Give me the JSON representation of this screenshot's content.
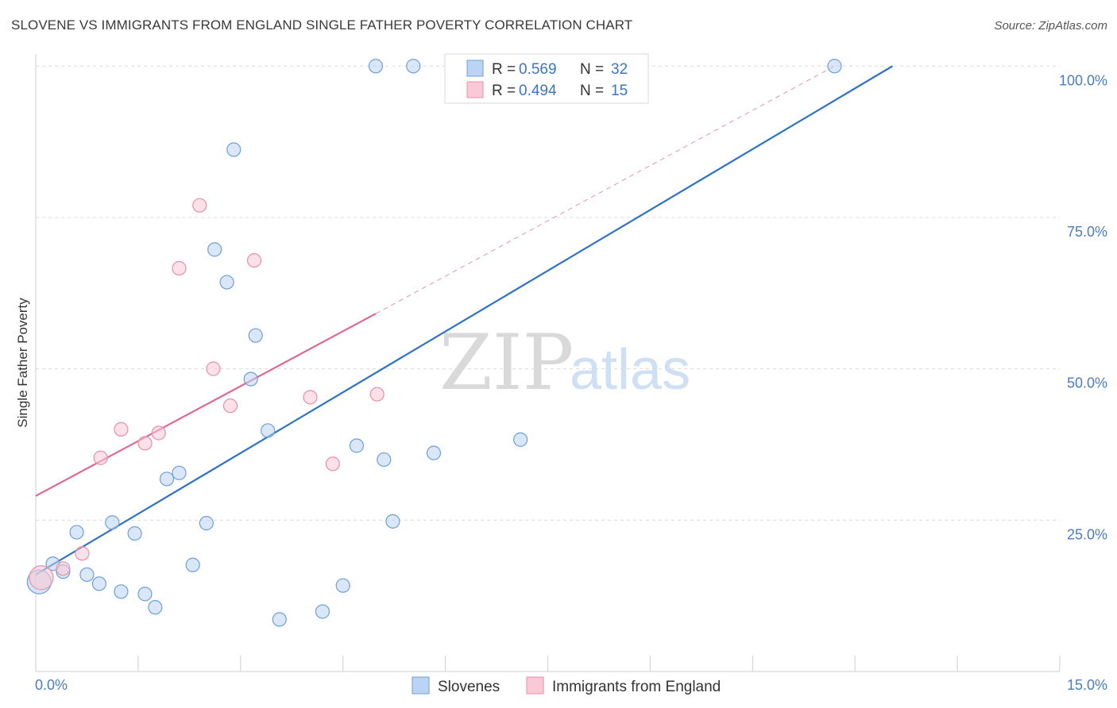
{
  "title": "SLOVENE VS IMMIGRANTS FROM ENGLAND SINGLE FATHER POVERTY CORRELATION CHART",
  "source": "Source: ZipAtlas.com",
  "watermark": {
    "zip": "ZIP",
    "atlas": "atlas"
  },
  "colors": {
    "slovenes_fill": "#bcd4f3",
    "slovenes_stroke": "#6f9fd8",
    "slovenes_line": "#2e72c8",
    "england_fill": "#f9c9d6",
    "england_stroke": "#e98fa8",
    "england_line": "#e06890",
    "grid": "#dcdcdc",
    "tick_label": "#4a7cc4"
  },
  "legend": {
    "rows": [
      {
        "r_label": "R =",
        "r_value": "0.569",
        "n_label": "N =",
        "n_value": "32"
      },
      {
        "r_label": "R =",
        "r_value": "0.494",
        "n_label": "N =",
        "n_value": "15"
      }
    ]
  },
  "chart_data": {
    "type": "scatter",
    "title": "SLOVENE VS IMMIGRANTS FROM ENGLAND SINGLE FATHER POVERTY CORRELATION CHART",
    "xlabel": "",
    "ylabel": "Single Father Poverty",
    "xlim": [
      0,
      15
    ],
    "ylim": [
      0,
      102
    ],
    "x_tick_labels": [
      "0.0%",
      "15.0%"
    ],
    "y_ticks": [
      25,
      50,
      75,
      100
    ],
    "y_tick_labels": [
      "25.0%",
      "50.0%",
      "75.0%",
      "100.0%"
    ],
    "grid": true,
    "legend_position": "top-center",
    "series": [
      {
        "name": "Slovenes",
        "r": 0.569,
        "n": 32,
        "trend": {
          "x0": 0,
          "y0": 16.0,
          "x1": 12.55,
          "y1": 100.0
        },
        "points": [
          {
            "x": 0.05,
            "y": 14.8,
            "large": true
          },
          {
            "x": 0.25,
            "y": 17.8
          },
          {
            "x": 0.4,
            "y": 16.5
          },
          {
            "x": 0.6,
            "y": 23.0
          },
          {
            "x": 0.75,
            "y": 16.0
          },
          {
            "x": 0.93,
            "y": 14.5
          },
          {
            "x": 1.12,
            "y": 24.6
          },
          {
            "x": 1.25,
            "y": 13.2
          },
          {
            "x": 1.45,
            "y": 22.8
          },
          {
            "x": 1.6,
            "y": 12.8
          },
          {
            "x": 1.75,
            "y": 10.6
          },
          {
            "x": 1.92,
            "y": 31.8
          },
          {
            "x": 2.1,
            "y": 32.8
          },
          {
            "x": 2.3,
            "y": 17.6
          },
          {
            "x": 2.5,
            "y": 24.5
          },
          {
            "x": 2.62,
            "y": 69.7
          },
          {
            "x": 2.8,
            "y": 64.3
          },
          {
            "x": 2.9,
            "y": 86.2
          },
          {
            "x": 3.15,
            "y": 48.3
          },
          {
            "x": 3.22,
            "y": 55.5
          },
          {
            "x": 3.4,
            "y": 39.8
          },
          {
            "x": 3.57,
            "y": 8.6
          },
          {
            "x": 4.2,
            "y": 9.9
          },
          {
            "x": 4.5,
            "y": 14.2
          },
          {
            "x": 4.7,
            "y": 37.3
          },
          {
            "x": 4.98,
            "y": 100.0
          },
          {
            "x": 5.1,
            "y": 35.0
          },
          {
            "x": 5.23,
            "y": 24.8
          },
          {
            "x": 5.53,
            "y": 100.0
          },
          {
            "x": 5.83,
            "y": 36.1
          },
          {
            "x": 7.1,
            "y": 38.3
          },
          {
            "x": 11.7,
            "y": 100.0
          }
        ]
      },
      {
        "name": "Immigrants from England",
        "r": 0.494,
        "n": 15,
        "trend": {
          "x0": 0,
          "y0": 29.0,
          "x1": 4.98,
          "y1": 59.1
        },
        "trend_extension": {
          "x0": 4.98,
          "y0": 59.1,
          "x1": 11.7,
          "y1": 100.0
        },
        "points": [
          {
            "x": 0.08,
            "y": 15.5,
            "large": true
          },
          {
            "x": 0.4,
            "y": 17.0
          },
          {
            "x": 0.68,
            "y": 19.5
          },
          {
            "x": 0.95,
            "y": 35.3
          },
          {
            "x": 1.25,
            "y": 40.0
          },
          {
            "x": 1.6,
            "y": 37.7
          },
          {
            "x": 1.8,
            "y": 39.4
          },
          {
            "x": 2.1,
            "y": 66.6
          },
          {
            "x": 2.4,
            "y": 77.0
          },
          {
            "x": 2.6,
            "y": 50.0
          },
          {
            "x": 2.85,
            "y": 43.9
          },
          {
            "x": 3.2,
            "y": 67.9
          },
          {
            "x": 4.02,
            "y": 45.3
          },
          {
            "x": 4.35,
            "y": 34.3
          },
          {
            "x": 5.0,
            "y": 45.8
          }
        ]
      }
    ]
  }
}
